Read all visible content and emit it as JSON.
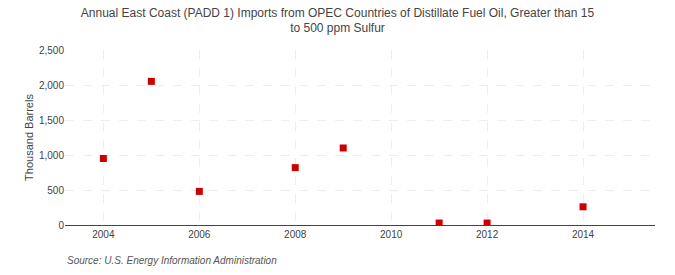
{
  "chart_data": {
    "type": "scatter",
    "title": "Annual East Coast (PADD 1) Imports from OPEC Countries of Distillate Fuel Oil, Greater than 15\nto 500 ppm Sulfur",
    "ylabel": "Thousand Barrels",
    "annotations": [
      "Source: U.S. Energy Information Administration"
    ],
    "x": [
      2004,
      2005,
      2006,
      2008,
      2009,
      2011,
      2012,
      2014
    ],
    "values": [
      950,
      2052,
      480,
      820,
      1100,
      28,
      28,
      260
    ],
    "color": "#cc0000",
    "marker": "square",
    "xlim": [
      2003.2,
      2015.5
    ],
    "xticks": [
      2004,
      2006,
      2008,
      2010,
      2012,
      2014
    ],
    "ylim": [
      0,
      2500
    ],
    "yticks": [
      0,
      500,
      {
        "value": 1000,
        "label": "1,000"
      },
      {
        "value": 1500,
        "label": "1,500"
      },
      {
        "value": 2000,
        "label": "2,000"
      },
      {
        "value": 2500,
        "label": "2,500"
      }
    ],
    "grid": true
  }
}
